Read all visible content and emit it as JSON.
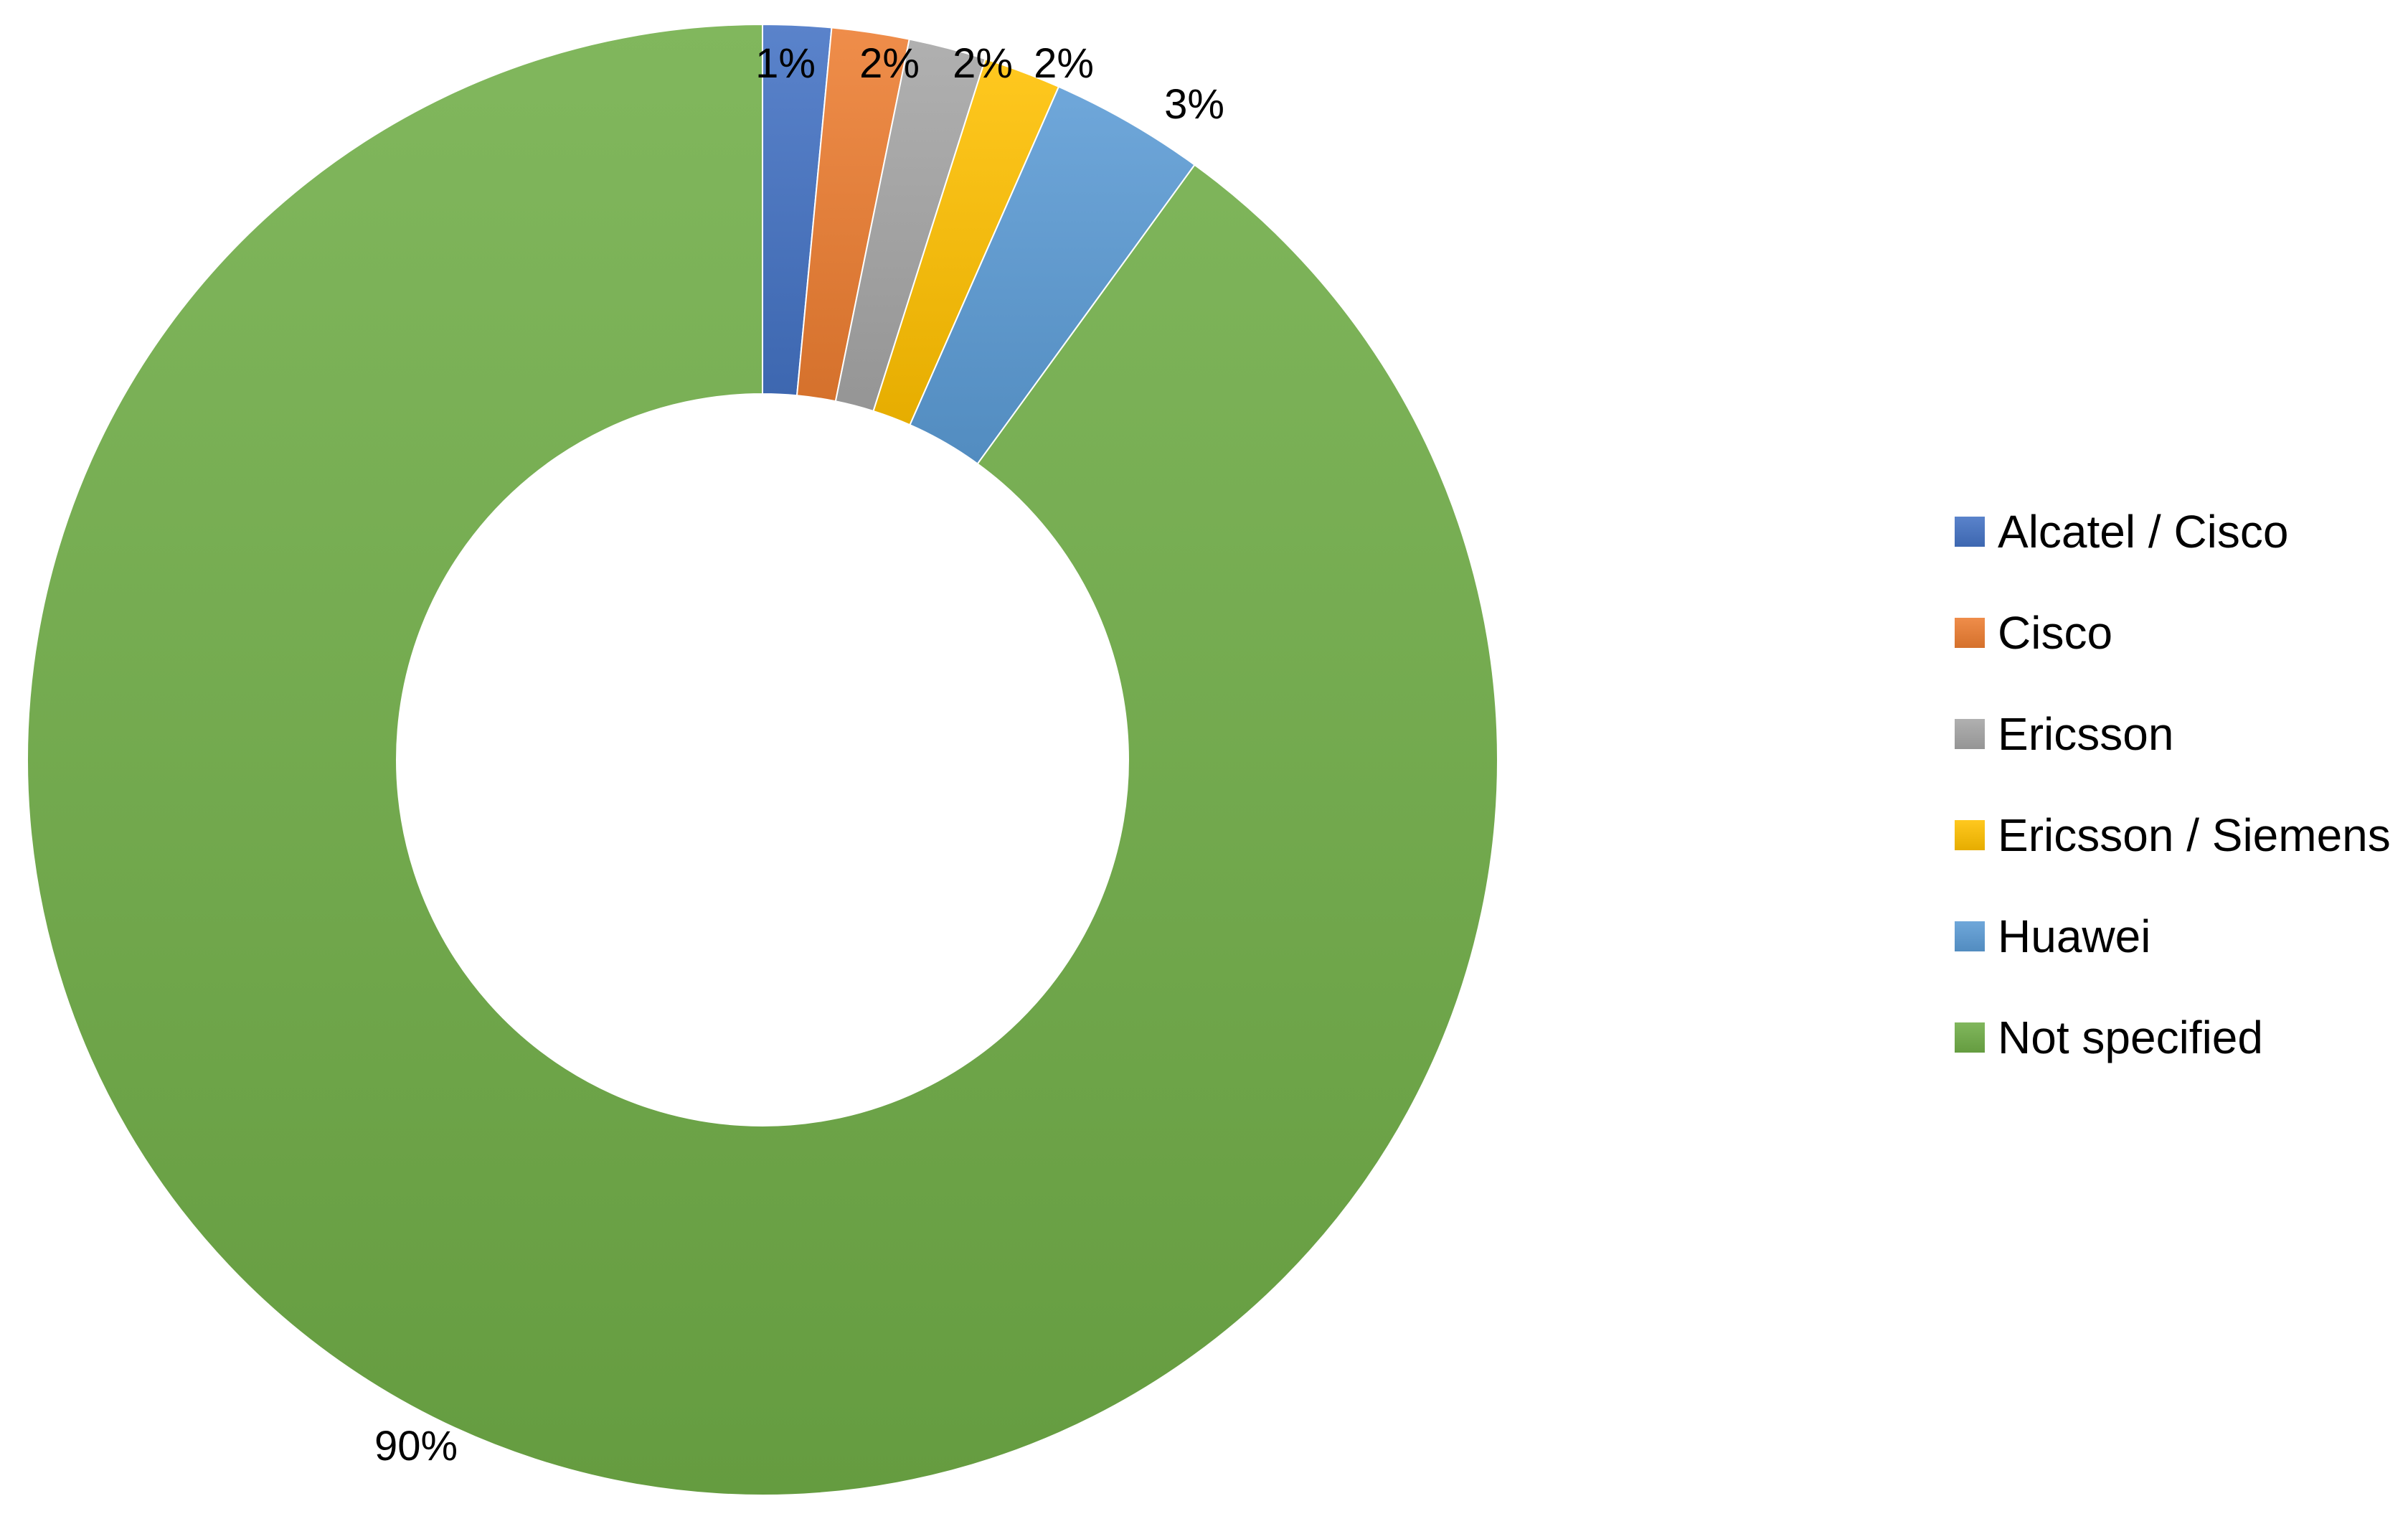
{
  "chart_data": {
    "type": "pie",
    "variant": "doughnut",
    "title": "",
    "legend_position": "right",
    "categories": [
      "Alcatel / Cisco",
      "Cisco",
      "Ericsson",
      "Ericsson / Siemens",
      "Huawei",
      "Not specified"
    ],
    "values": [
      1.5,
      1.7,
      1.7,
      1.7,
      3.4,
      90.0
    ],
    "data_labels": [
      "1%",
      "2%",
      "2%",
      "2%",
      "3%",
      "90%"
    ],
    "colors": [
      "#4472C4",
      "#ED7D31",
      "#A5A5A5",
      "#FFC000",
      "#5B9BD5",
      "#70AD47"
    ],
    "fill_style": "vertical-gradient"
  }
}
